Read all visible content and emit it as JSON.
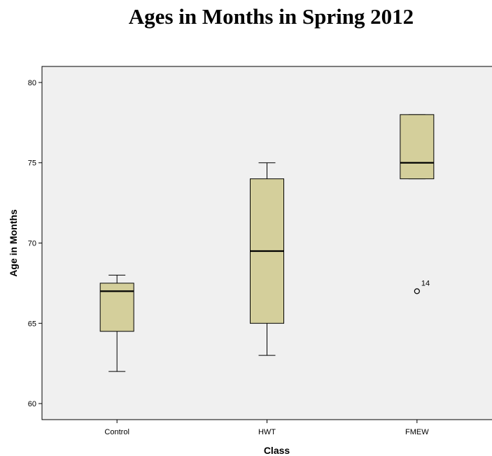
{
  "chart_data": {
    "type": "box",
    "title": "Ages in Months in Spring 2012",
    "xlabel": "Class",
    "ylabel": "Age in Months",
    "ylim": [
      59,
      81
    ],
    "yticks": [
      60,
      65,
      70,
      75,
      80
    ],
    "grid": false,
    "categories": [
      "Control",
      "HWT",
      "FMEW"
    ],
    "boxes": [
      {
        "category": "Control",
        "min": 62,
        "q1": 64.5,
        "median": 67,
        "q3": 67.5,
        "max": 68,
        "outliers": []
      },
      {
        "category": "HWT",
        "min": 63,
        "q1": 65,
        "median": 69.5,
        "q3": 74,
        "max": 75,
        "outliers": []
      },
      {
        "category": "FMEW",
        "min": 74,
        "q1": 74,
        "median": 75,
        "q3": 78,
        "max": 78,
        "outliers": [
          {
            "value": 67,
            "label": "14"
          }
        ]
      }
    ],
    "colors": {
      "box_fill": "#d4cf9b",
      "plot_background": "#f0f0f0",
      "stroke": "#000000"
    }
  }
}
